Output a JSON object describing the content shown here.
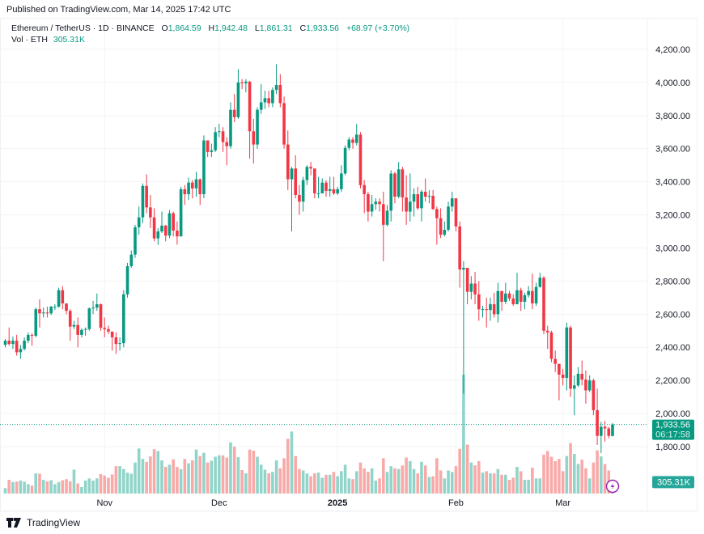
{
  "header": {
    "published": "Published on TradingView.com, Mar 14, 2025 17:42 UTC",
    "symbol": "Ethereum / TetherUS · 1D · BINANCE",
    "o_label": "O",
    "o_value": "1,864.59",
    "h_label": "H",
    "h_value": "1,942.48",
    "l_label": "L",
    "l_value": "1,861.31",
    "c_label": "C",
    "c_value": "1,933.56",
    "change": "+68.97 (+3.70%)",
    "vol_label": "Vol · ETH",
    "vol_value": "305.31K"
  },
  "price_axis": {
    "ticks": [
      "4,200.00",
      "4,000.00",
      "3,800.00",
      "3,600.00",
      "3,400.00",
      "3,200.00",
      "3,000.00",
      "2,800.00",
      "2,600.00",
      "2,400.00",
      "2,200.00",
      "2,000.00",
      "1,800.00"
    ],
    "last_price": "1,933.56",
    "countdown": "06:17:58",
    "volume_label": "305.31K"
  },
  "time_axis": {
    "labels": [
      "Nov",
      "Dec",
      "2025",
      "Feb",
      "Mar"
    ]
  },
  "footer": {
    "brand": "TradingView"
  },
  "colors": {
    "up": "#089981",
    "down": "#f23645",
    "up_volume": "#91d4c9",
    "down_volume": "#f8a9a8",
    "grid": "#f2f3f5",
    "accent_icon": "#9c27b0"
  },
  "icons": {
    "logo": "tradingview-logo",
    "alert": "lightning-icon"
  },
  "chart_data": {
    "type": "candlestick",
    "symbol": "ETHUSDT",
    "interval": "1D",
    "first_date": "2024-10-06",
    "last_date": "2025-03-14",
    "ylim": [
      1700,
      4250
    ],
    "grid": true,
    "x_tick_dates": [
      "2024-11-01",
      "2024-12-01",
      "2025-01-01",
      "2025-02-01",
      "2025-03-01"
    ],
    "y_ticks": [
      4200,
      4000,
      3800,
      3600,
      3400,
      3200,
      3000,
      2800,
      2600,
      2400,
      2200,
      2000,
      1800
    ],
    "first_open": 2415,
    "last_open": 1864.59,
    "close": [
      2440,
      2420,
      2440,
      2370,
      2390,
      2440,
      2475,
      2470,
      2630,
      2605,
      2610,
      2605,
      2645,
      2645,
      2745,
      2665,
      2620,
      2525,
      2535,
      2475,
      2505,
      2510,
      2635,
      2640,
      2660,
      2518,
      2510,
      2495,
      2460,
      2420,
      2425,
      2720,
      2890,
      2960,
      3125,
      3185,
      3375,
      3245,
      3185,
      3058,
      3100,
      3135,
      3075,
      3210,
      3105,
      3070,
      3355,
      3325,
      3395,
      3360,
      3415,
      3325,
      3650,
      3580,
      3590,
      3700,
      3705,
      3640,
      3615,
      3835,
      3790,
      4000,
      3995,
      4005,
      3705,
      3625,
      3835,
      3880,
      3905,
      3875,
      3955,
      3985,
      3875,
      3625,
      3415,
      3480,
      3320,
      3280,
      3410,
      3490,
      3480,
      3330,
      3330,
      3395,
      3345,
      3355,
      3330,
      3355,
      3450,
      3605,
      3655,
      3635,
      3685,
      3380,
      3325,
      3220,
      3265,
      3280,
      3265,
      3140,
      3225,
      3450,
      3310,
      3475,
      3305,
      3220,
      3280,
      3325,
      3240,
      3340,
      3310,
      3315,
      3235,
      3180,
      3080,
      3110,
      3250,
      3300,
      3130,
      2870,
      2880,
      2735,
      2785,
      2720,
      2630,
      2630,
      2625,
      2660,
      2600,
      2740,
      2675,
      2725,
      2695,
      2660,
      2745,
      2675,
      2715,
      2740,
      2665,
      2765,
      2820,
      2500,
      2490,
      2330,
      2300,
      2235,
      2215,
      2520,
      2150,
      2170,
      2240,
      2205,
      2140,
      2200,
      2020,
      1865,
      1920,
      1910,
      1865,
      1933.56
    ],
    "high": [
      2450,
      2520,
      2465,
      2475,
      2415,
      2460,
      2490,
      2485,
      2640,
      2690,
      2640,
      2645,
      2650,
      2660,
      2760,
      2770,
      2665,
      2630,
      2560,
      2580,
      2515,
      2520,
      2640,
      2680,
      2725,
      2665,
      2580,
      2530,
      2490,
      2490,
      2460,
      2745,
      2910,
      2985,
      3140,
      3250,
      3390,
      3445,
      3320,
      3240,
      3120,
      3220,
      3140,
      3230,
      3220,
      3160,
      3370,
      3380,
      3425,
      3410,
      3460,
      3420,
      3680,
      3650,
      3630,
      3730,
      3750,
      3730,
      3670,
      3880,
      3930,
      4080,
      4020,
      4020,
      4010,
      3780,
      3850,
      3990,
      3950,
      3950,
      3970,
      4110,
      4050,
      3915,
      3710,
      3490,
      3560,
      3380,
      3430,
      3500,
      3520,
      3480,
      3430,
      3420,
      3410,
      3430,
      3430,
      3370,
      3500,
      3620,
      3670,
      3670,
      3750,
      3700,
      3410,
      3340,
      3320,
      3300,
      3300,
      3340,
      3260,
      3470,
      3460,
      3520,
      3490,
      3440,
      3450,
      3360,
      3370,
      3350,
      3420,
      3350,
      3350,
      3250,
      3240,
      3160,
      3280,
      3340,
      3300,
      3160,
      2920,
      2880,
      2830,
      2855,
      2800,
      2650,
      2700,
      2700,
      2730,
      2790,
      2740,
      2790,
      2740,
      2720,
      2850,
      2760,
      2730,
      2770,
      2845,
      2790,
      2850,
      2830,
      2530,
      2500,
      2380,
      2300,
      2270,
      2550,
      2530,
      2230,
      2280,
      2320,
      2260,
      2230,
      2210,
      2150,
      1950,
      1955,
      1920,
      1942.48
    ],
    "low": [
      2400,
      2410,
      2390,
      2350,
      2330,
      2380,
      2425,
      2410,
      2460,
      2520,
      2580,
      2580,
      2595,
      2625,
      2640,
      2630,
      2600,
      2440,
      2510,
      2400,
      2460,
      2470,
      2500,
      2600,
      2620,
      2500,
      2460,
      2480,
      2380,
      2360,
      2380,
      2400,
      2700,
      2880,
      2940,
      3080,
      3150,
      3210,
      3120,
      3040,
      3020,
      3090,
      3040,
      3060,
      3070,
      3020,
      3070,
      3260,
      3290,
      3300,
      3310,
      3260,
      3300,
      3550,
      3550,
      3580,
      3670,
      3580,
      3500,
      3600,
      3760,
      3780,
      3960,
      3940,
      3540,
      3510,
      3600,
      3810,
      3840,
      3850,
      3850,
      3930,
      3850,
      3600,
      3350,
      3100,
      3300,
      3200,
      3220,
      3380,
      3440,
      3300,
      3300,
      3330,
      3310,
      3310,
      3320,
      3320,
      3340,
      3440,
      3590,
      3600,
      3620,
      3360,
      3210,
      3160,
      3190,
      3230,
      3220,
      2920,
      3130,
      3160,
      3270,
      3300,
      3220,
      3140,
      3160,
      3190,
      3230,
      3160,
      3280,
      3270,
      3230,
      3020,
      3060,
      3070,
      3100,
      3220,
      3100,
      2760,
      2120,
      2660,
      2690,
      2660,
      2560,
      2580,
      2520,
      2560,
      2580,
      2550,
      2620,
      2660,
      2680,
      2650,
      2660,
      2620,
      2630,
      2700,
      2630,
      2650,
      2760,
      2480,
      2390,
      2310,
      2250,
      2080,
      2170,
      2140,
      2100,
      1990,
      2160,
      2170,
      2060,
      2130,
      1990,
      1810,
      1760,
      1830,
      1850,
      1861.31
    ],
    "volume_k": [
      150,
      380,
      320,
      330,
      360,
      330,
      260,
      220,
      560,
      550,
      380,
      340,
      370,
      260,
      320,
      370,
      400,
      340,
      660,
      280,
      180,
      360,
      420,
      360,
      420,
      540,
      500,
      440,
      530,
      760,
      760,
      680,
      580,
      550,
      860,
      1250,
      960,
      880,
      1030,
      1230,
      1180,
      920,
      740,
      800,
      950,
      740,
      680,
      960,
      840,
      920,
      1220,
      1040,
      1130,
      860,
      910,
      1020,
      1060,
      1060,
      1000,
      1420,
      1300,
      1010,
      650,
      560,
      1220,
      1190,
      1020,
      800,
      660,
      560,
      600,
      920,
      700,
      980,
      1520,
      1720,
      1040,
      680,
      640,
      560,
      480,
      560,
      580,
      440,
      520,
      520,
      600,
      480,
      620,
      800,
      420,
      400,
      620,
      860,
      700,
      600,
      700,
      360,
      420,
      980,
      600,
      760,
      700,
      680,
      780,
      1000,
      900,
      680,
      560,
      880,
      780,
      460,
      480,
      980,
      640,
      420,
      640,
      600,
      760,
      1240,
      3300,
      1360,
      860,
      780,
      900,
      580,
      620,
      560,
      560,
      680,
      520,
      520,
      380,
      440,
      740,
      620,
      380,
      380,
      720,
      420,
      420,
      1080,
      1180,
      1020,
      900,
      960,
      620,
      1040,
      1400,
      1100,
      820,
      940,
      700,
      420,
      860,
      1200,
      1030,
      820,
      640,
      305.31
    ]
  }
}
